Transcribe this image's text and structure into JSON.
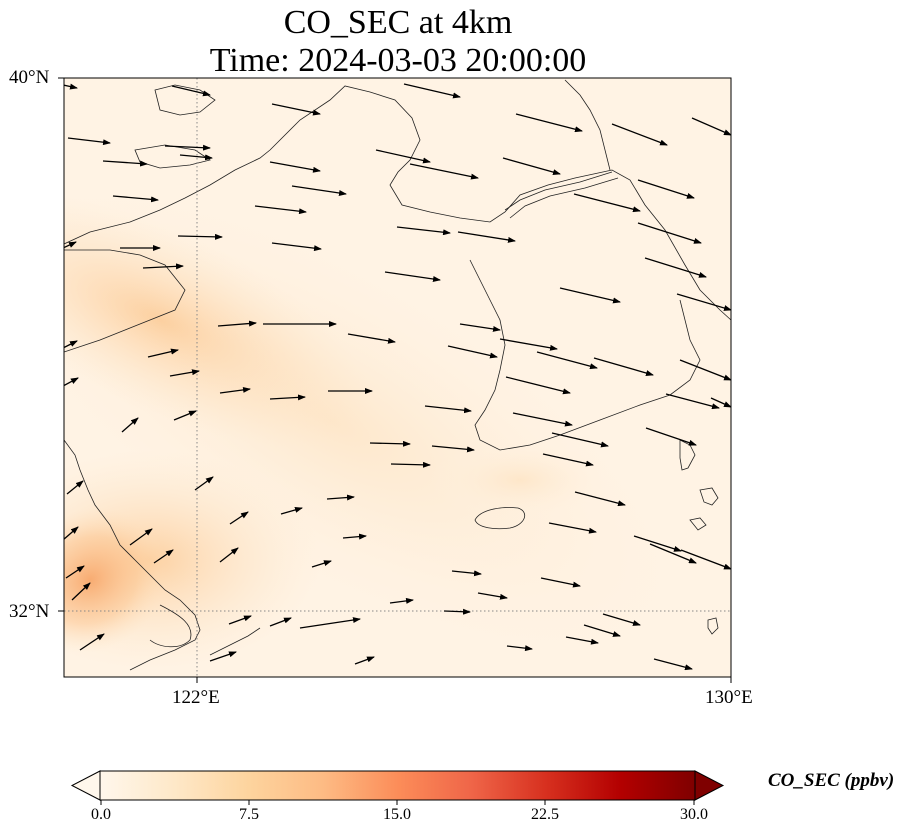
{
  "title": {
    "line1": "CO_SEC at 4km",
    "line2": "Time: 2024-03-03 20:00:00"
  },
  "map": {
    "lat_ticks": [
      "40°N",
      "32°N"
    ],
    "lon_ticks": [
      "122°E",
      "130°E"
    ],
    "gridline_style": "dotted grey",
    "extent": {
      "lon_min": 120,
      "lon_max": 130,
      "lat_min": 31,
      "lat_max": 40
    }
  },
  "colorbar": {
    "label": "CO_SEC (ppbv)",
    "ticks": [
      "0.0",
      "7.5",
      "15.0",
      "22.5",
      "30.0"
    ],
    "min": 0,
    "max": 30,
    "extend": "both",
    "colormap": "OrRd",
    "colors": [
      "#fff7ec",
      "#fee8c8",
      "#fdd49e",
      "#fdbb84",
      "#fc8d59",
      "#ef6548",
      "#d7301f",
      "#b30000",
      "#7f0000"
    ]
  }
}
